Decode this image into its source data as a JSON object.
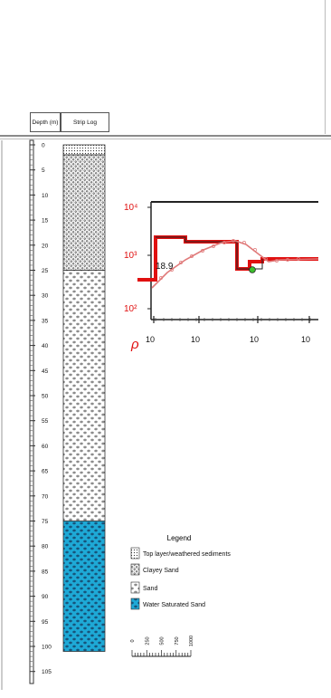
{
  "header": {
    "depth_col": "Depth (m)",
    "strip_col": "Strip Log"
  },
  "depth_axis": {
    "ticks": [
      "0",
      "5",
      "10",
      "15",
      "20",
      "25",
      "30",
      "35",
      "40",
      "45",
      "50",
      "55",
      "60",
      "65",
      "70",
      "75",
      "80",
      "85",
      "90",
      "95",
      "100",
      "105"
    ],
    "max_depth": 105
  },
  "layers": [
    {
      "name": "Top layer/weathered sediments",
      "top": 0,
      "bottom": 2,
      "pattern": "fine"
    },
    {
      "name": "Clayey Sand",
      "top": 2,
      "bottom": 25,
      "pattern": "dense"
    },
    {
      "name": "Sand",
      "top": 25,
      "bottom": 75,
      "pattern": "sparse"
    },
    {
      "name": "Water Saturated Sand",
      "top": 75,
      "bottom": 101,
      "pattern": "water",
      "color": "#1ea9d6"
    }
  ],
  "legend": {
    "title": "Legend",
    "items": [
      {
        "label": "Top layer/weathered sediments",
        "pattern": "fine"
      },
      {
        "label": "Clayey Sand",
        "pattern": "dense"
      },
      {
        "label": "Sand",
        "pattern": "sparse"
      },
      {
        "label": "Water Saturated Sand",
        "pattern": "water"
      }
    ]
  },
  "scale_bar": {
    "labels": [
      "0",
      "250",
      "500",
      "750",
      "1000"
    ]
  },
  "inset": {
    "y_ticks": [
      "10⁴",
      "10³",
      "10²"
    ],
    "x_ticks": [
      "10",
      "10",
      "10",
      "10"
    ],
    "axis_symbol": "ρ",
    "annotation": "18.9",
    "red_color": "#e01010",
    "pink_color": "#e07a7a",
    "marker_color": "#3cbf2c"
  },
  "colors": {
    "water": "#1ea9d6"
  }
}
